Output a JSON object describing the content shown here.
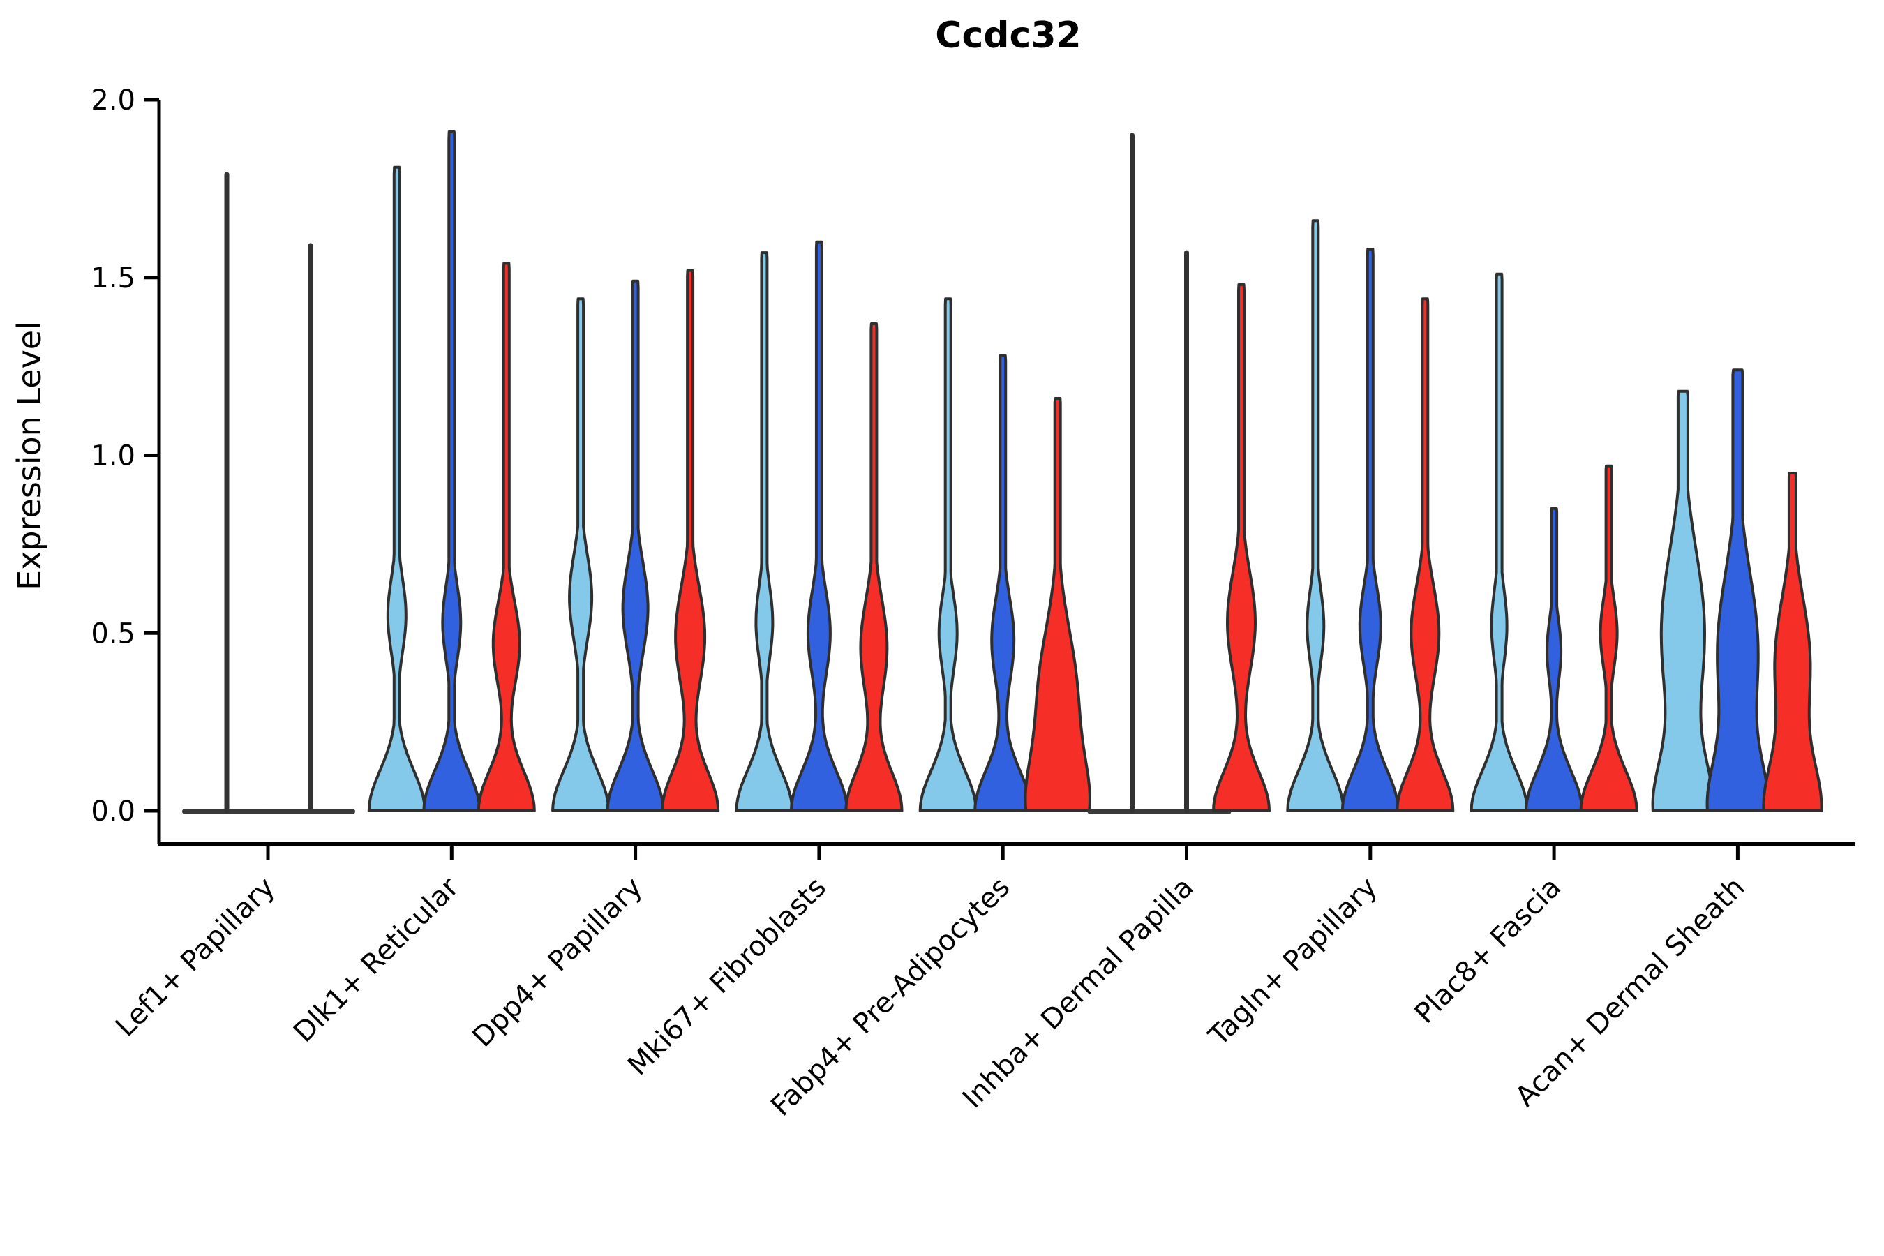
{
  "title": "Ccdc32",
  "y_axis": {
    "label": "Expression Level",
    "ticks": [
      {
        "label": "0.0",
        "value": 0.0
      },
      {
        "label": "0.5",
        "value": 0.5
      },
      {
        "label": "1.0",
        "value": 1.0
      },
      {
        "label": "1.5",
        "value": 1.5
      },
      {
        "label": "2.0",
        "value": 2.0
      }
    ]
  },
  "colors": {
    "series_light_blue": "#85C9EA",
    "series_blue": "#3161DE",
    "series_red": "#F52E28",
    "outline": "#2F2F2F",
    "spike": "#333333",
    "baseline": "#3A3A3A",
    "axis": "#000000"
  },
  "chart_data": {
    "type": "violin",
    "title": "Ccdc32",
    "xlabel": "",
    "ylabel": "Expression Level",
    "ylim": [
      -0.09,
      2.0
    ],
    "grid": false,
    "legend": "none",
    "series_colors": [
      "#85C9EA",
      "#3161DE",
      "#F52E28"
    ],
    "categories": [
      "Lef1+ Papillary",
      "Dlk1+ Reticular",
      "Dpp4+ Papillary",
      "Mki67+ Fibroblasts",
      "Fabp4+ Pre-Adipocytes",
      "Inhba+ Dermal Papilla",
      "Tagln+ Papillary",
      "Plac8+ Fascia",
      "Acan+ Dermal Sheath"
    ],
    "groups": [
      {
        "category": "Lef1+ Papillary",
        "violins": [
          {
            "slot": 0,
            "shape": "spike",
            "max": 1.79,
            "x_offset": -59,
            "pancake_hw": 60
          },
          {
            "slot": 1,
            "shape": "spike",
            "max": 1.59,
            "x_offset": 61,
            "pancake_hw": 60
          },
          {
            "slot": 2,
            "shape": "flat",
            "max": 0.0,
            "pancake_hw": 40
          }
        ]
      },
      {
        "category": "Dlk1+ Reticular",
        "violins": [
          {
            "slot": 0,
            "shape": "violin",
            "max": 1.81,
            "bulge_center": 0.55,
            "bulge_hw": 13,
            "bulge_sigma": 0.15
          },
          {
            "slot": 1,
            "shape": "violin",
            "max": 1.91,
            "bulge_center": 0.53,
            "bulge_hw": 13,
            "bulge_sigma": 0.15
          },
          {
            "slot": 2,
            "shape": "violin",
            "max": 1.54,
            "bulge_center": 0.47,
            "bulge_hw": 19,
            "bulge_sigma": 0.17
          }
        ]
      },
      {
        "category": "Dpp4+ Papillary",
        "violins": [
          {
            "slot": 0,
            "shape": "violin",
            "max": 1.44,
            "bulge_center": 0.6,
            "bulge_hw": 16,
            "bulge_sigma": 0.17
          },
          {
            "slot": 1,
            "shape": "violin",
            "max": 1.49,
            "bulge_center": 0.57,
            "bulge_hw": 18,
            "bulge_sigma": 0.18
          },
          {
            "slot": 2,
            "shape": "violin",
            "max": 1.52,
            "bulge_center": 0.49,
            "bulge_hw": 21,
            "bulge_sigma": 0.2
          }
        ]
      },
      {
        "category": "Mki67+ Fibroblasts",
        "violins": [
          {
            "slot": 0,
            "shape": "violin",
            "max": 1.57,
            "bulge_center": 0.53,
            "bulge_hw": 12,
            "bulge_sigma": 0.15
          },
          {
            "slot": 1,
            "shape": "violin",
            "max": 1.6,
            "bulge_center": 0.5,
            "bulge_hw": 16,
            "bulge_sigma": 0.17
          },
          {
            "slot": 2,
            "shape": "violin",
            "max": 1.37,
            "bulge_center": 0.46,
            "bulge_hw": 19,
            "bulge_sigma": 0.19
          }
        ]
      },
      {
        "category": "Fabp4+ Pre-Adipocytes",
        "violins": [
          {
            "slot": 0,
            "shape": "violin",
            "max": 1.44,
            "bulge_center": 0.5,
            "bulge_hw": 13,
            "bulge_sigma": 0.15
          },
          {
            "slot": 1,
            "shape": "violin",
            "max": 1.28,
            "bulge_center": 0.48,
            "bulge_hw": 16,
            "bulge_sigma": 0.17
          },
          {
            "slot": 2,
            "shape": "violin",
            "max": 1.16,
            "bulge_center": 0.33,
            "bulge_hw": 27,
            "bulge_sigma": 0.26,
            "base_decay": 0.2
          }
        ]
      },
      {
        "category": "Inhba+ Dermal Papilla",
        "violins": [
          {
            "slot": 0,
            "shape": "spike",
            "max": 1.9,
            "x_offset": -78,
            "pancake_hw": 60
          },
          {
            "slot": 1,
            "shape": "spike",
            "max": 1.57,
            "x_offset": 0,
            "pancake_hw": 60
          },
          {
            "slot": 2,
            "shape": "violin",
            "max": 1.48,
            "bulge_center": 0.53,
            "bulge_hw": 20,
            "bulge_sigma": 0.2
          }
        ]
      },
      {
        "category": "Tagln+ Papillary",
        "violins": [
          {
            "slot": 0,
            "shape": "violin",
            "max": 1.66,
            "bulge_center": 0.52,
            "bulge_hw": 12,
            "bulge_sigma": 0.15
          },
          {
            "slot": 1,
            "shape": "violin",
            "max": 1.58,
            "bulge_center": 0.52,
            "bulge_hw": 15,
            "bulge_sigma": 0.16
          },
          {
            "slot": 2,
            "shape": "violin",
            "max": 1.44,
            "bulge_center": 0.5,
            "bulge_hw": 20,
            "bulge_sigma": 0.19
          }
        ]
      },
      {
        "category": "Plac8+ Fascia",
        "violins": [
          {
            "slot": 0,
            "shape": "violin",
            "max": 1.51,
            "bulge_center": 0.52,
            "bulge_hw": 11,
            "bulge_sigma": 0.15
          },
          {
            "slot": 1,
            "shape": "violin",
            "max": 0.85,
            "bulge_center": 0.45,
            "bulge_hw": 10,
            "bulge_sigma": 0.13
          },
          {
            "slot": 2,
            "shape": "violin",
            "max": 0.97,
            "bulge_center": 0.5,
            "bulge_hw": 12,
            "bulge_sigma": 0.14
          }
        ]
      },
      {
        "category": "Acan+ Dermal Sheath",
        "violins": [
          {
            "slot": 0,
            "shape": "violin",
            "max": 1.18,
            "bulge_center": 0.5,
            "bulge_hw": 31,
            "bulge_sigma": 0.33,
            "base_decay": 0.2,
            "spike_hw": 7
          },
          {
            "slot": 1,
            "shape": "violin",
            "max": 1.24,
            "bulge_center": 0.45,
            "bulge_hw": 29,
            "bulge_sigma": 0.31,
            "base_decay": 0.2,
            "spike_hw": 7
          },
          {
            "slot": 2,
            "shape": "violin",
            "max": 0.95,
            "bulge_center": 0.42,
            "bulge_hw": 25,
            "bulge_sigma": 0.25,
            "base_decay": 0.2,
            "spike_hw": 5
          }
        ]
      }
    ]
  }
}
